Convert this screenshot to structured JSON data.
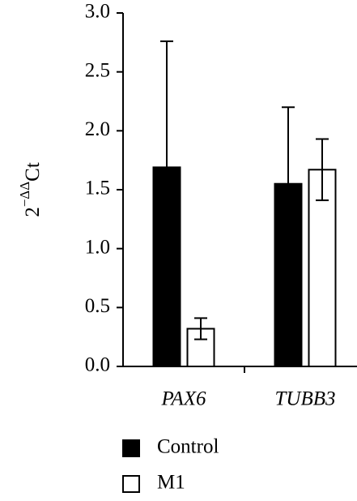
{
  "chart_data": {
    "type": "bar",
    "y_label": {
      "base": "2",
      "superscript": "−ΔΔ",
      "suffix": "Ct"
    },
    "categories": [
      "PAX6",
      "TUBB3"
    ],
    "series": [
      {
        "name": "Control",
        "color": "#000000",
        "values": [
          1.69,
          1.55
        ],
        "errors": [
          1.07,
          0.65
        ]
      },
      {
        "name": "M1",
        "color": "#ffffff",
        "values": [
          0.32,
          1.67
        ],
        "errors": [
          0.09,
          0.26
        ]
      }
    ],
    "ylim": [
      0,
      3.0
    ],
    "yticks": [
      {
        "value": 0,
        "label": "0.0"
      },
      0.5,
      {
        "value": 1,
        "label": "1.0"
      },
      1.5,
      {
        "value": 2,
        "label": "2.0"
      },
      2.5,
      {
        "value": 3,
        "label": "3.0"
      }
    ],
    "legend_position": "bottom"
  }
}
